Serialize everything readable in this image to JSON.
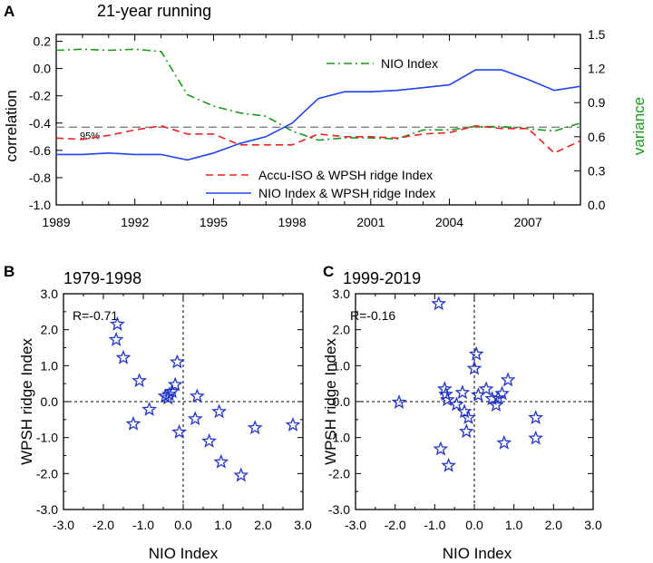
{
  "chart_data": [
    {
      "type": "line",
      "panel": "A",
      "title": "21-year running",
      "xlabel": "",
      "ylabel": "correlation",
      "y2label": "variance",
      "xlim": [
        1989,
        2009
      ],
      "ylim": [
        -1.0,
        0.25
      ],
      "y2lim": [
        0.0,
        1.5
      ],
      "xticks": [
        1989,
        1992,
        1995,
        1998,
        2001,
        2004,
        2007
      ],
      "yticks": [
        -1.0,
        -0.8,
        -0.6,
        -0.4,
        -0.2,
        0.0,
        0.2
      ],
      "yticklabels": [
        "-1.0",
        "-0.8",
        "-0.6",
        "-0.4",
        "-0.2",
        "0.0",
        "0.2"
      ],
      "y2ticks": [
        0.0,
        0.3,
        0.6,
        0.9,
        1.2,
        1.5
      ],
      "y2ticklabels": [
        "0.0",
        "0.3",
        "0.6",
        "0.9",
        "1.2",
        "1.5"
      ],
      "reference_line": {
        "value": -0.43,
        "label": "95%",
        "color": "#808080"
      },
      "series": [
        {
          "name": "NIO Index",
          "axis": "right",
          "color": "#1a9a1a",
          "dash": "dashdot",
          "x": [
            1989,
            1990,
            1991,
            1992,
            1993,
            1994,
            1995,
            1996,
            1997,
            1998,
            1999,
            2000,
            2001,
            2002,
            2003,
            2004,
            2005,
            2006,
            2007,
            2008,
            2009
          ],
          "values": [
            1.36,
            1.37,
            1.36,
            1.37,
            1.35,
            0.97,
            0.87,
            0.81,
            0.78,
            0.65,
            0.57,
            0.59,
            0.59,
            0.58,
            0.66,
            0.66,
            0.69,
            0.69,
            0.67,
            0.65,
            0.72
          ]
        },
        {
          "name": "Accu-ISO & WPSH ridge Index",
          "axis": "left",
          "color": "#ee2222",
          "dash": "dashed",
          "x": [
            1989,
            1990,
            1991,
            1992,
            1993,
            1994,
            1995,
            1996,
            1997,
            1998,
            1999,
            2000,
            2001,
            2002,
            2003,
            2004,
            2005,
            2006,
            2007,
            2008,
            2009
          ],
          "values": [
            -0.51,
            -0.52,
            -0.49,
            -0.45,
            -0.42,
            -0.48,
            -0.48,
            -0.56,
            -0.56,
            -0.56,
            -0.48,
            -0.5,
            -0.5,
            -0.51,
            -0.48,
            -0.47,
            -0.42,
            -0.44,
            -0.44,
            -0.62,
            -0.53
          ]
        },
        {
          "name": "NIO Index & WPSH ridge Index",
          "axis": "left",
          "color": "#2244ee",
          "dash": "solid",
          "x": [
            1989,
            1990,
            1991,
            1992,
            1993,
            1994,
            1995,
            1996,
            1997,
            1998,
            1999,
            2000,
            2001,
            2002,
            2003,
            2004,
            2005,
            2006,
            2007,
            2008,
            2009
          ],
          "values": [
            -0.63,
            -0.63,
            -0.62,
            -0.63,
            -0.63,
            -0.67,
            -0.62,
            -0.55,
            -0.5,
            -0.4,
            -0.22,
            -0.17,
            -0.17,
            -0.16,
            -0.14,
            -0.12,
            -0.01,
            -0.01,
            -0.08,
            -0.16,
            -0.13
          ]
        }
      ]
    },
    {
      "type": "scatter",
      "panel": "B",
      "title": "1979-1998",
      "annotation": "R=-0.71",
      "xlabel": "NIO Index",
      "ylabel": "WPSH ridge Index",
      "xlim": [
        -3.0,
        3.0
      ],
      "ylim": [
        -3.0,
        3.0
      ],
      "ticks": [
        -3.0,
        -2.0,
        -1.0,
        0.0,
        1.0,
        2.0,
        3.0
      ],
      "ticklabels": [
        "-3.0",
        "-2.0",
        "-1.0",
        "0.0",
        "1.0",
        "2.0",
        "3.0"
      ],
      "marker": "star",
      "color": "#2233cc",
      "points": [
        [
          -1.65,
          2.15
        ],
        [
          -1.68,
          1.72
        ],
        [
          -1.5,
          1.22
        ],
        [
          -1.1,
          0.58
        ],
        [
          -0.85,
          -0.22
        ],
        [
          -1.25,
          -0.62
        ],
        [
          -0.45,
          0.15
        ],
        [
          -0.35,
          0.2
        ],
        [
          -0.38,
          0.1
        ],
        [
          -0.28,
          0.28
        ],
        [
          -0.2,
          0.47
        ],
        [
          -0.15,
          1.1
        ],
        [
          -0.1,
          -0.85
        ],
        [
          0.35,
          0.15
        ],
        [
          0.3,
          -0.48
        ],
        [
          0.65,
          -1.1
        ],
        [
          0.9,
          -0.28
        ],
        [
          0.95,
          -1.68
        ],
        [
          1.45,
          -2.05
        ],
        [
          1.8,
          -0.73
        ],
        [
          2.75,
          -0.65
        ]
      ]
    },
    {
      "type": "scatter",
      "panel": "C",
      "title": "1999-2019",
      "annotation": "R=-0.16",
      "xlabel": "NIO Index",
      "ylabel": "WPSH ridge Index",
      "xlim": [
        -3.0,
        3.0
      ],
      "ylim": [
        -3.0,
        3.0
      ],
      "ticks": [
        -3.0,
        -2.0,
        -1.0,
        0.0,
        1.0,
        2.0,
        3.0
      ],
      "ticklabels": [
        "-3.0",
        "-2.0",
        "-1.0",
        "0.0",
        "1.0",
        "2.0",
        "3.0"
      ],
      "marker": "star",
      "color": "#2233cc",
      "points": [
        [
          -0.9,
          2.72
        ],
        [
          -1.9,
          -0.02
        ],
        [
          -0.85,
          -1.32
        ],
        [
          -0.75,
          0.35
        ],
        [
          -0.72,
          0.2
        ],
        [
          -0.68,
          0.05
        ],
        [
          -0.65,
          -1.78
        ],
        [
          -0.45,
          -0.08
        ],
        [
          -0.3,
          0.25
        ],
        [
          -0.25,
          -0.28
        ],
        [
          -0.2,
          -0.83
        ],
        [
          -0.15,
          -0.45
        ],
        [
          0.0,
          0.92
        ],
        [
          0.05,
          1.32
        ],
        [
          0.1,
          0.18
        ],
        [
          0.3,
          0.35
        ],
        [
          0.45,
          0.08
        ],
        [
          0.55,
          -0.1
        ],
        [
          0.6,
          0.1
        ],
        [
          0.7,
          0.22
        ],
        [
          0.85,
          0.6
        ],
        [
          0.75,
          -1.15
        ],
        [
          1.55,
          -0.45
        ],
        [
          1.55,
          -1.02
        ]
      ]
    }
  ]
}
